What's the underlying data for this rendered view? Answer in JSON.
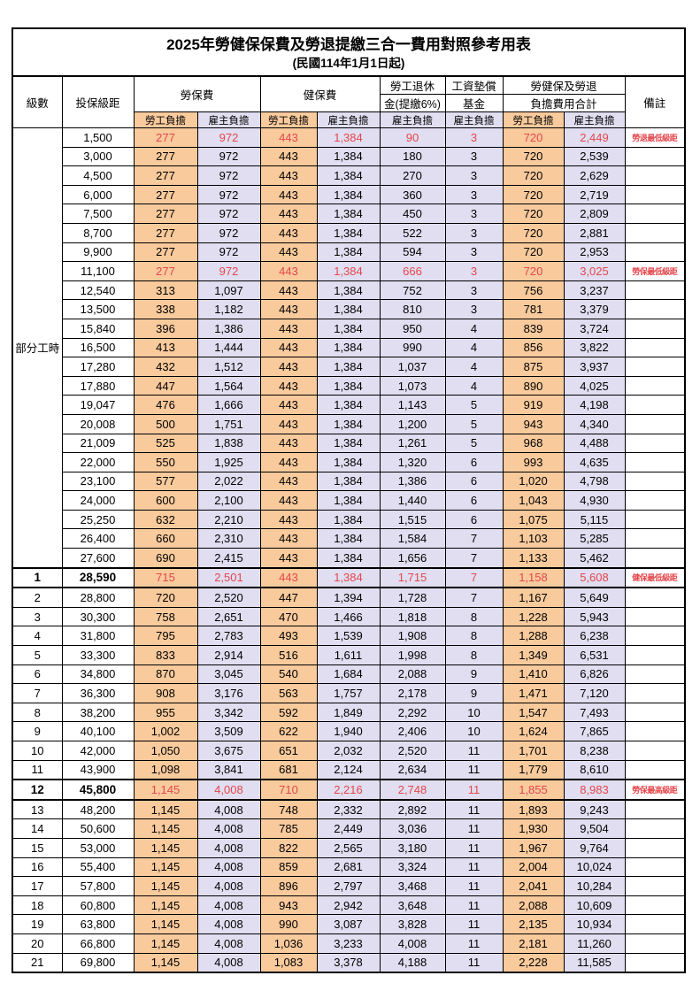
{
  "title": "2025年勞健保保費及勞退提繳三合一費用對照參考用表",
  "subtitle": "(民國114年1月1日起)",
  "colors": {
    "employee_fill": "#F8CA9C",
    "employer_fill": "#E0DEF0",
    "highlight_red": "#E4474D",
    "border": "#000000"
  },
  "header": {
    "level": "級數",
    "bracket": "投保級距",
    "labor_group": "勞保費",
    "health_group": "健保費",
    "pension_line1": "勞工退休",
    "pension_line2": "金(提繳6%)",
    "fund_line1": "工資墊償",
    "fund_line2": "基金",
    "total_line1": "勞健保及勞退",
    "total_line2": "負擔費用合計",
    "employee": "勞工負擔",
    "employer": "雇主負擔",
    "remark": "備註"
  },
  "part_time_label": "部分工時",
  "rows": [
    {
      "level": "",
      "bracket": "1,500",
      "labor_emp": "277",
      "labor_er": "972",
      "health_emp": "443",
      "health_er": "1,384",
      "pension_er": "90",
      "fund_er": "3",
      "total_emp": "720",
      "total_er": "2,449",
      "remark": "勞退最低級距",
      "red": true,
      "emphasis": false
    },
    {
      "level": "",
      "bracket": "3,000",
      "labor_emp": "277",
      "labor_er": "972",
      "health_emp": "443",
      "health_er": "1,384",
      "pension_er": "180",
      "fund_er": "3",
      "total_emp": "720",
      "total_er": "2,539",
      "remark": "",
      "red": false,
      "emphasis": false
    },
    {
      "level": "",
      "bracket": "4,500",
      "labor_emp": "277",
      "labor_er": "972",
      "health_emp": "443",
      "health_er": "1,384",
      "pension_er": "270",
      "fund_er": "3",
      "total_emp": "720",
      "total_er": "2,629",
      "remark": "",
      "red": false,
      "emphasis": false
    },
    {
      "level": "",
      "bracket": "6,000",
      "labor_emp": "277",
      "labor_er": "972",
      "health_emp": "443",
      "health_er": "1,384",
      "pension_er": "360",
      "fund_er": "3",
      "total_emp": "720",
      "total_er": "2,719",
      "remark": "",
      "red": false,
      "emphasis": false
    },
    {
      "level": "",
      "bracket": "7,500",
      "labor_emp": "277",
      "labor_er": "972",
      "health_emp": "443",
      "health_er": "1,384",
      "pension_er": "450",
      "fund_er": "3",
      "total_emp": "720",
      "total_er": "2,809",
      "remark": "",
      "red": false,
      "emphasis": false
    },
    {
      "level": "",
      "bracket": "8,700",
      "labor_emp": "277",
      "labor_er": "972",
      "health_emp": "443",
      "health_er": "1,384",
      "pension_er": "522",
      "fund_er": "3",
      "total_emp": "720",
      "total_er": "2,881",
      "remark": "",
      "red": false,
      "emphasis": false
    },
    {
      "level": "",
      "bracket": "9,900",
      "labor_emp": "277",
      "labor_er": "972",
      "health_emp": "443",
      "health_er": "1,384",
      "pension_er": "594",
      "fund_er": "3",
      "total_emp": "720",
      "total_er": "2,953",
      "remark": "",
      "red": false,
      "emphasis": false
    },
    {
      "level": "",
      "bracket": "11,100",
      "labor_emp": "277",
      "labor_er": "972",
      "health_emp": "443",
      "health_er": "1,384",
      "pension_er": "666",
      "fund_er": "3",
      "total_emp": "720",
      "total_er": "3,025",
      "remark": "勞保最低級距",
      "red": true,
      "emphasis": false
    },
    {
      "level": "",
      "bracket": "12,540",
      "labor_emp": "313",
      "labor_er": "1,097",
      "health_emp": "443",
      "health_er": "1,384",
      "pension_er": "752",
      "fund_er": "3",
      "total_emp": "756",
      "total_er": "3,237",
      "remark": "",
      "red": false,
      "emphasis": false
    },
    {
      "level": "",
      "bracket": "13,500",
      "labor_emp": "338",
      "labor_er": "1,182",
      "health_emp": "443",
      "health_er": "1,384",
      "pension_er": "810",
      "fund_er": "3",
      "total_emp": "781",
      "total_er": "3,379",
      "remark": "",
      "red": false,
      "emphasis": false
    },
    {
      "level": "",
      "bracket": "15,840",
      "labor_emp": "396",
      "labor_er": "1,386",
      "health_emp": "443",
      "health_er": "1,384",
      "pension_er": "950",
      "fund_er": "4",
      "total_emp": "839",
      "total_er": "3,724",
      "remark": "",
      "red": false,
      "emphasis": false
    },
    {
      "level": "",
      "bracket": "16,500",
      "labor_emp": "413",
      "labor_er": "1,444",
      "health_emp": "443",
      "health_er": "1,384",
      "pension_er": "990",
      "fund_er": "4",
      "total_emp": "856",
      "total_er": "3,822",
      "remark": "",
      "red": false,
      "emphasis": false
    },
    {
      "level": "",
      "bracket": "17,280",
      "labor_emp": "432",
      "labor_er": "1,512",
      "health_emp": "443",
      "health_er": "1,384",
      "pension_er": "1,037",
      "fund_er": "4",
      "total_emp": "875",
      "total_er": "3,937",
      "remark": "",
      "red": false,
      "emphasis": false
    },
    {
      "level": "",
      "bracket": "17,880",
      "labor_emp": "447",
      "labor_er": "1,564",
      "health_emp": "443",
      "health_er": "1,384",
      "pension_er": "1,073",
      "fund_er": "4",
      "total_emp": "890",
      "total_er": "4,025",
      "remark": "",
      "red": false,
      "emphasis": false
    },
    {
      "level": "",
      "bracket": "19,047",
      "labor_emp": "476",
      "labor_er": "1,666",
      "health_emp": "443",
      "health_er": "1,384",
      "pension_er": "1,143",
      "fund_er": "5",
      "total_emp": "919",
      "total_er": "4,198",
      "remark": "",
      "red": false,
      "emphasis": false
    },
    {
      "level": "",
      "bracket": "20,008",
      "labor_emp": "500",
      "labor_er": "1,751",
      "health_emp": "443",
      "health_er": "1,384",
      "pension_er": "1,200",
      "fund_er": "5",
      "total_emp": "943",
      "total_er": "4,340",
      "remark": "",
      "red": false,
      "emphasis": false
    },
    {
      "level": "",
      "bracket": "21,009",
      "labor_emp": "525",
      "labor_er": "1,838",
      "health_emp": "443",
      "health_er": "1,384",
      "pension_er": "1,261",
      "fund_er": "5",
      "total_emp": "968",
      "total_er": "4,488",
      "remark": "",
      "red": false,
      "emphasis": false
    },
    {
      "level": "",
      "bracket": "22,000",
      "labor_emp": "550",
      "labor_er": "1,925",
      "health_emp": "443",
      "health_er": "1,384",
      "pension_er": "1,320",
      "fund_er": "6",
      "total_emp": "993",
      "total_er": "4,635",
      "remark": "",
      "red": false,
      "emphasis": false
    },
    {
      "level": "",
      "bracket": "23,100",
      "labor_emp": "577",
      "labor_er": "2,022",
      "health_emp": "443",
      "health_er": "1,384",
      "pension_er": "1,386",
      "fund_er": "6",
      "total_emp": "1,020",
      "total_er": "4,798",
      "remark": "",
      "red": false,
      "emphasis": false
    },
    {
      "level": "",
      "bracket": "24,000",
      "labor_emp": "600",
      "labor_er": "2,100",
      "health_emp": "443",
      "health_er": "1,384",
      "pension_er": "1,440",
      "fund_er": "6",
      "total_emp": "1,043",
      "total_er": "4,930",
      "remark": "",
      "red": false,
      "emphasis": false
    },
    {
      "level": "",
      "bracket": "25,250",
      "labor_emp": "632",
      "labor_er": "2,210",
      "health_emp": "443",
      "health_er": "1,384",
      "pension_er": "1,515",
      "fund_er": "6",
      "total_emp": "1,075",
      "total_er": "5,115",
      "remark": "",
      "red": false,
      "emphasis": false
    },
    {
      "level": "",
      "bracket": "26,400",
      "labor_emp": "660",
      "labor_er": "2,310",
      "health_emp": "443",
      "health_er": "1,384",
      "pension_er": "1,584",
      "fund_er": "7",
      "total_emp": "1,103",
      "total_er": "5,285",
      "remark": "",
      "red": false,
      "emphasis": false
    },
    {
      "level": "",
      "bracket": "27,600",
      "labor_emp": "690",
      "labor_er": "2,415",
      "health_emp": "443",
      "health_er": "1,384",
      "pension_er": "1,656",
      "fund_er": "7",
      "total_emp": "1,133",
      "total_er": "5,462",
      "remark": "",
      "red": false,
      "emphasis": false
    },
    {
      "level": "1",
      "bracket": "28,590",
      "labor_emp": "715",
      "labor_er": "2,501",
      "health_emp": "443",
      "health_er": "1,384",
      "pension_er": "1,715",
      "fund_er": "7",
      "total_emp": "1,158",
      "total_er": "5,608",
      "remark": "健保最低級距",
      "red": true,
      "emphasis": true
    },
    {
      "level": "2",
      "bracket": "28,800",
      "labor_emp": "720",
      "labor_er": "2,520",
      "health_emp": "447",
      "health_er": "1,394",
      "pension_er": "1,728",
      "fund_er": "7",
      "total_emp": "1,167",
      "total_er": "5,649",
      "remark": "",
      "red": false,
      "emphasis": false
    },
    {
      "level": "3",
      "bracket": "30,300",
      "labor_emp": "758",
      "labor_er": "2,651",
      "health_emp": "470",
      "health_er": "1,466",
      "pension_er": "1,818",
      "fund_er": "8",
      "total_emp": "1,228",
      "total_er": "5,943",
      "remark": "",
      "red": false,
      "emphasis": false
    },
    {
      "level": "4",
      "bracket": "31,800",
      "labor_emp": "795",
      "labor_er": "2,783",
      "health_emp": "493",
      "health_er": "1,539",
      "pension_er": "1,908",
      "fund_er": "8",
      "total_emp": "1,288",
      "total_er": "6,238",
      "remark": "",
      "red": false,
      "emphasis": false
    },
    {
      "level": "5",
      "bracket": "33,300",
      "labor_emp": "833",
      "labor_er": "2,914",
      "health_emp": "516",
      "health_er": "1,611",
      "pension_er": "1,998",
      "fund_er": "8",
      "total_emp": "1,349",
      "total_er": "6,531",
      "remark": "",
      "red": false,
      "emphasis": false
    },
    {
      "level": "6",
      "bracket": "34,800",
      "labor_emp": "870",
      "labor_er": "3,045",
      "health_emp": "540",
      "health_er": "1,684",
      "pension_er": "2,088",
      "fund_er": "9",
      "total_emp": "1,410",
      "total_er": "6,826",
      "remark": "",
      "red": false,
      "emphasis": false
    },
    {
      "level": "7",
      "bracket": "36,300",
      "labor_emp": "908",
      "labor_er": "3,176",
      "health_emp": "563",
      "health_er": "1,757",
      "pension_er": "2,178",
      "fund_er": "9",
      "total_emp": "1,471",
      "total_er": "7,120",
      "remark": "",
      "red": false,
      "emphasis": false
    },
    {
      "level": "8",
      "bracket": "38,200",
      "labor_emp": "955",
      "labor_er": "3,342",
      "health_emp": "592",
      "health_er": "1,849",
      "pension_er": "2,292",
      "fund_er": "10",
      "total_emp": "1,547",
      "total_er": "7,493",
      "remark": "",
      "red": false,
      "emphasis": false
    },
    {
      "level": "9",
      "bracket": "40,100",
      "labor_emp": "1,002",
      "labor_er": "3,509",
      "health_emp": "622",
      "health_er": "1,940",
      "pension_er": "2,406",
      "fund_er": "10",
      "total_emp": "1,624",
      "total_er": "7,865",
      "remark": "",
      "red": false,
      "emphasis": false
    },
    {
      "level": "10",
      "bracket": "42,000",
      "labor_emp": "1,050",
      "labor_er": "3,675",
      "health_emp": "651",
      "health_er": "2,032",
      "pension_er": "2,520",
      "fund_er": "11",
      "total_emp": "1,701",
      "total_er": "8,238",
      "remark": "",
      "red": false,
      "emphasis": false
    },
    {
      "level": "11",
      "bracket": "43,900",
      "labor_emp": "1,098",
      "labor_er": "3,841",
      "health_emp": "681",
      "health_er": "2,124",
      "pension_er": "2,634",
      "fund_er": "11",
      "total_emp": "1,779",
      "total_er": "8,610",
      "remark": "",
      "red": false,
      "emphasis": false
    },
    {
      "level": "12",
      "bracket": "45,800",
      "labor_emp": "1,145",
      "labor_er": "4,008",
      "health_emp": "710",
      "health_er": "2,216",
      "pension_er": "2,748",
      "fund_er": "11",
      "total_emp": "1,855",
      "total_er": "8,983",
      "remark": "勞保最高級距",
      "red": true,
      "emphasis": true
    },
    {
      "level": "13",
      "bracket": "48,200",
      "labor_emp": "1,145",
      "labor_er": "4,008",
      "health_emp": "748",
      "health_er": "2,332",
      "pension_er": "2,892",
      "fund_er": "11",
      "total_emp": "1,893",
      "total_er": "9,243",
      "remark": "",
      "red": false,
      "emphasis": false
    },
    {
      "level": "14",
      "bracket": "50,600",
      "labor_emp": "1,145",
      "labor_er": "4,008",
      "health_emp": "785",
      "health_er": "2,449",
      "pension_er": "3,036",
      "fund_er": "11",
      "total_emp": "1,930",
      "total_er": "9,504",
      "remark": "",
      "red": false,
      "emphasis": false
    },
    {
      "level": "15",
      "bracket": "53,000",
      "labor_emp": "1,145",
      "labor_er": "4,008",
      "health_emp": "822",
      "health_er": "2,565",
      "pension_er": "3,180",
      "fund_er": "11",
      "total_emp": "1,967",
      "total_er": "9,764",
      "remark": "",
      "red": false,
      "emphasis": false
    },
    {
      "level": "16",
      "bracket": "55,400",
      "labor_emp": "1,145",
      "labor_er": "4,008",
      "health_emp": "859",
      "health_er": "2,681",
      "pension_er": "3,324",
      "fund_er": "11",
      "total_emp": "2,004",
      "total_er": "10,024",
      "remark": "",
      "red": false,
      "emphasis": false
    },
    {
      "level": "17",
      "bracket": "57,800",
      "labor_emp": "1,145",
      "labor_er": "4,008",
      "health_emp": "896",
      "health_er": "2,797",
      "pension_er": "3,468",
      "fund_er": "11",
      "total_emp": "2,041",
      "total_er": "10,284",
      "remark": "",
      "red": false,
      "emphasis": false
    },
    {
      "level": "18",
      "bracket": "60,800",
      "labor_emp": "1,145",
      "labor_er": "4,008",
      "health_emp": "943",
      "health_er": "2,942",
      "pension_er": "3,648",
      "fund_er": "11",
      "total_emp": "2,088",
      "total_er": "10,609",
      "remark": "",
      "red": false,
      "emphasis": false
    },
    {
      "level": "19",
      "bracket": "63,800",
      "labor_emp": "1,145",
      "labor_er": "4,008",
      "health_emp": "990",
      "health_er": "3,087",
      "pension_er": "3,828",
      "fund_er": "11",
      "total_emp": "2,135",
      "total_er": "10,934",
      "remark": "",
      "red": false,
      "emphasis": false
    },
    {
      "level": "20",
      "bracket": "66,800",
      "labor_emp": "1,145",
      "labor_er": "4,008",
      "health_emp": "1,036",
      "health_er": "3,233",
      "pension_er": "4,008",
      "fund_er": "11",
      "total_emp": "2,181",
      "total_er": "11,260",
      "remark": "",
      "red": false,
      "emphasis": false
    },
    {
      "level": "21",
      "bracket": "69,800",
      "labor_emp": "1,145",
      "labor_er": "4,008",
      "health_emp": "1,083",
      "health_er": "3,378",
      "pension_er": "4,188",
      "fund_er": "11",
      "total_emp": "2,228",
      "total_er": "11,585",
      "remark": "",
      "red": false,
      "emphasis": false
    }
  ]
}
